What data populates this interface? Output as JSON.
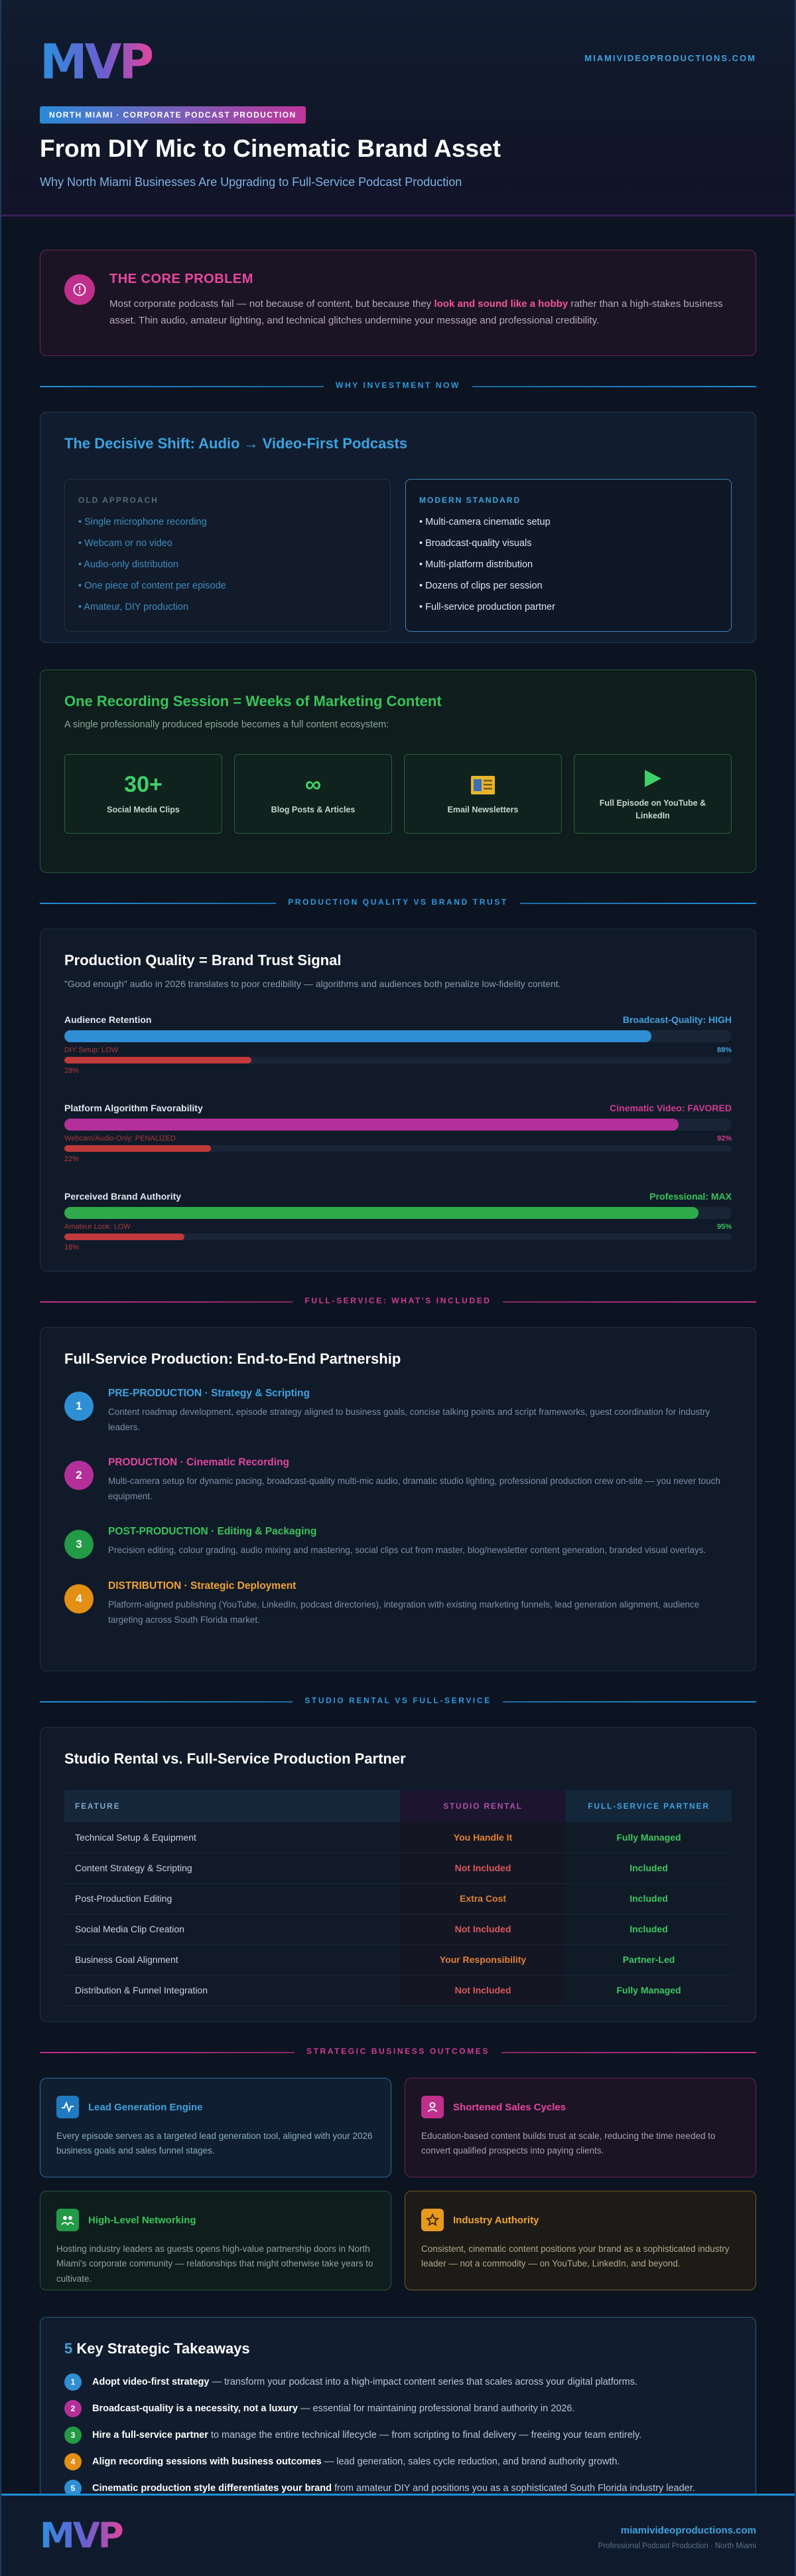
{
  "header": {
    "logo_text": "MVP",
    "site_url": "MIAMIVIDEOPRODUCTIONS.COM",
    "eyebrow": "NORTH MIAMI · CORPORATE PODCAST PRODUCTION",
    "title": "From DIY Mic to Cinematic Brand Asset",
    "subtitle": "Why North Miami Businesses Are Upgrading to Full-Service Podcast Production"
  },
  "problem": {
    "title": "THE CORE PROBLEM",
    "text_before": "Most corporate podcasts fail — not because of content, but because they ",
    "text_bold": "look and sound like a hobby",
    "text_after": " rather than a high-stakes business asset. Thin audio, amateur lighting, and technical glitches undermine your message and professional credibility."
  },
  "dividers": {
    "investment": "WHY INVESTMENT NOW",
    "quality": "PRODUCTION QUALITY VS BRAND TRUST",
    "fullservice": "FULL-SERVICE: WHAT'S INCLUDED",
    "studio": "STUDIO RENTAL VS FULL-SERVICE",
    "outcomes": "STRATEGIC BUSINESS OUTCOMES"
  },
  "shift": {
    "title": "The Decisive Shift: Audio → Video-First Podcasts",
    "old_label": "OLD APPROACH",
    "old_items": [
      "• Single microphone recording",
      "• Webcam or no video",
      "• Audio-only distribution",
      "• One piece of content per episode",
      "• Amateur, DIY production"
    ],
    "new_label": "MODERN STANDARD",
    "new_items": [
      "• Multi-camera cinematic setup",
      "• Broadcast-quality visuals",
      "• Multi-platform distribution",
      "• Dozens of clips per session",
      "• Full-service production partner"
    ]
  },
  "recording": {
    "title": "One Recording Session = Weeks of Marketing Content",
    "subtitle": "A single professionally produced episode becomes a full content ecosystem:",
    "tiles": [
      {
        "icon": "30+",
        "label": "Social Media Clips"
      },
      {
        "icon": "∞",
        "label": "Blog Posts & Articles"
      },
      {
        "icon": "newsletter-icon",
        "label": "Email Newsletters"
      },
      {
        "icon": "play-icon",
        "label": "Full Episode on YouTube & LinkedIn"
      }
    ]
  },
  "quality": {
    "title": "Production Quality = Brand Trust Signal",
    "subtitle": "\"Good enough\" audio in 2026 translates to poor credibility — algorithms and audiences both penalize low-fidelity content.",
    "metrics": [
      {
        "name": "Audience Retention",
        "high_label": "Broadcast-Quality: HIGH",
        "high_value": 88,
        "high_pct": "88%",
        "low_label": "DIY Setup: LOW",
        "low_value": 28,
        "low_pct": "28%",
        "high_color": "#2f8fd4",
        "label_color": "#3fa3de"
      },
      {
        "name": "Platform Algorithm Favorability",
        "high_label": "Cinematic Video: FAVORED",
        "high_value": 92,
        "high_pct": "92%",
        "low_label": "Webcam/Audio-Only: PENALIZED",
        "low_value": 22,
        "low_pct": "22%",
        "high_color": "#b3309a",
        "label_color": "#d03b93"
      },
      {
        "name": "Perceived Brand Authority",
        "high_label": "Professional: MAX",
        "high_value": 95,
        "high_pct": "95%",
        "low_label": "Amateur Look: LOW",
        "low_value": 18,
        "low_pct": "18%",
        "high_color": "#2faa4a",
        "label_color": "#37c45b"
      }
    ]
  },
  "fullservice": {
    "title": "Full-Service Production: End-to-End Partnership",
    "steps": [
      {
        "num": "1",
        "title": "PRE-PRODUCTION · Strategy & Scripting",
        "text": "Content roadmap development, episode strategy aligned to business goals, concise talking points and script frameworks, guest coordination for industry leaders.",
        "color": "#2f8fd4",
        "title_color": "#3fa3de"
      },
      {
        "num": "2",
        "title": "PRODUCTION · Cinematic Recording",
        "text": "Multi-camera setup for dynamic pacing, broadcast-quality multi-mic audio, dramatic studio lighting, professional production crew on-site — you never touch equipment.",
        "color": "#b3309a",
        "title_color": "#e0479f"
      },
      {
        "num": "3",
        "title": "POST-PRODUCTION · Editing & Packaging",
        "text": "Precision editing, colour grading, audio mixing and mastering, social clips cut from master, blog/newsletter content generation, branded visual overlays.",
        "color": "#239a46",
        "title_color": "#37c45b"
      },
      {
        "num": "4",
        "title": "DISTRIBUTION · Strategic Deployment",
        "text": "Platform-aligned publishing (YouTube, LinkedIn, podcast directories), integration with existing marketing funnels, lead generation alignment, audience targeting across South Florida market.",
        "color": "#e38f14",
        "title_color": "#f1a330"
      }
    ]
  },
  "compare": {
    "title": "Studio Rental vs. Full-Service Production Partner",
    "headers": {
      "feature": "FEATURE",
      "studio": "STUDIO RENTAL",
      "full": "FULL-SERVICE PARTNER"
    },
    "rows": [
      {
        "feature": "Technical Setup & Equipment",
        "studio": "You Handle It",
        "full": "Fully Managed",
        "studio_tone": "orange"
      },
      {
        "feature": "Content Strategy & Scripting",
        "studio": "Not Included",
        "full": "Included",
        "studio_tone": "red"
      },
      {
        "feature": "Post-Production Editing",
        "studio": "Extra Cost",
        "full": "Included",
        "studio_tone": "orange"
      },
      {
        "feature": "Social Media Clip Creation",
        "studio": "Not Included",
        "full": "Included",
        "studio_tone": "red"
      },
      {
        "feature": "Business Goal Alignment",
        "studio": "Your Responsibility",
        "full": "Partner-Led",
        "studio_tone": "orange"
      },
      {
        "feature": "Distribution & Funnel Integration",
        "studio": "Not Included",
        "full": "Fully Managed",
        "studio_tone": "red"
      }
    ]
  },
  "outcomes": [
    {
      "tone": "o-blue",
      "icon": "pulse-icon",
      "title": "Lead Generation Engine",
      "text": "Every episode serves as a targeted lead generation tool, aligned with your 2026 business goals and sales funnel stages."
    },
    {
      "tone": "o-pink",
      "icon": "user-icon",
      "title": "Shortened Sales Cycles",
      "text": "Education-based content builds trust at scale, reducing the time needed to convert qualified prospects into paying clients."
    },
    {
      "tone": "o-green",
      "icon": "network-icon",
      "title": "High-Level Networking",
      "text": "Hosting industry leaders as guests opens high-value partnership doors in North Miami's corporate community — relationships that might otherwise take years to cultivate."
    },
    {
      "tone": "o-gold",
      "icon": "star-icon",
      "title": "Industry Authority",
      "text": "Consistent, cinematic content positions your brand as a sophisticated industry leader — not a commodity — on YouTube, LinkedIn, and beyond."
    }
  ],
  "takeaways": {
    "title_num": "5",
    "title_rest": " Key Strategic Takeaways",
    "items": [
      {
        "num": "1",
        "bold": "Adopt video-first strategy",
        "rest": " — transform your podcast into a high-impact content series that scales across your digital platforms.",
        "color": "#2f8fd4"
      },
      {
        "num": "2",
        "bold": "Broadcast-quality is a necessity, not a luxury",
        "rest": " — essential for maintaining professional brand authority in 2026.",
        "color": "#b3309a"
      },
      {
        "num": "3",
        "bold": "Hire a full-service partner",
        "rest": " to manage the entire technical lifecycle — from scripting to final delivery — freeing your team entirely.",
        "color": "#239a46"
      },
      {
        "num": "4",
        "bold": "Align recording sessions with business outcomes",
        "rest": " — lead generation, sales cycle reduction, and brand authority growth.",
        "color": "#e38f14"
      },
      {
        "num": "5",
        "bold": "Cinematic production style differentiates your brand",
        "rest": " from amateur DIY and positions you as a sophisticated South Florida industry leader.",
        "color": "#2f8fd4"
      }
    ]
  },
  "footer": {
    "url": "miamivideoproductions.com",
    "tagline": "Professional Podcast Production · North Miami"
  }
}
